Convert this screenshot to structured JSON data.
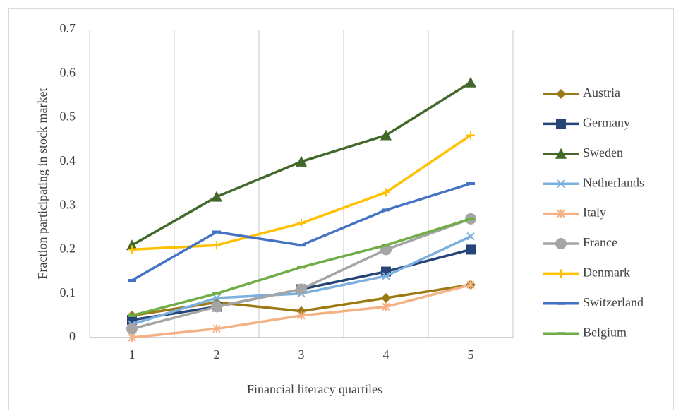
{
  "chart_data": {
    "type": "line",
    "x_label": "Financial literacy quartiles",
    "y_label": "Fraction participating in stock market",
    "categories": [
      "1",
      "2",
      "3",
      "4",
      "5"
    ],
    "ylim": [
      0,
      0.7
    ],
    "yticks": [
      0,
      0.1,
      0.2,
      0.3,
      0.4,
      0.5,
      0.6,
      0.7
    ],
    "x_grid": true,
    "legend": "right",
    "series": [
      {
        "name": "Austria",
        "color": "#9c7a13",
        "marker": "diamond",
        "values": [
          0.05,
          0.08,
          0.06,
          0.09,
          0.12
        ]
      },
      {
        "name": "Germany",
        "color": "#264478",
        "marker": "square",
        "values": [
          0.04,
          0.07,
          0.11,
          0.15,
          0.2
        ]
      },
      {
        "name": "Sweden",
        "color": "#43682b",
        "marker": "triangle",
        "values": [
          0.21,
          0.32,
          0.4,
          0.46,
          0.58
        ]
      },
      {
        "name": "Netherlands",
        "color": "#7cafdd",
        "marker": "x",
        "values": [
          0.03,
          0.09,
          0.1,
          0.14,
          0.23
        ]
      },
      {
        "name": "Italy",
        "color": "#f4b183",
        "marker": "asterisk",
        "values": [
          0.0,
          0.02,
          0.05,
          0.07,
          0.12
        ]
      },
      {
        "name": "France",
        "color": "#a5a5a5",
        "marker": "circle",
        "values": [
          0.02,
          0.07,
          0.11,
          0.2,
          0.27
        ]
      },
      {
        "name": "Denmark",
        "color": "#ffc000",
        "marker": "plus",
        "values": [
          0.2,
          0.21,
          0.26,
          0.33,
          0.46
        ]
      },
      {
        "name": "Switzerland",
        "color": "#4472c4",
        "marker": "dash",
        "values": [
          0.13,
          0.24,
          0.21,
          0.29,
          0.35
        ]
      },
      {
        "name": "Belgium",
        "color": "#70ad47",
        "marker": "dash",
        "values": [
          0.05,
          0.1,
          0.16,
          0.21,
          0.27
        ]
      }
    ]
  }
}
